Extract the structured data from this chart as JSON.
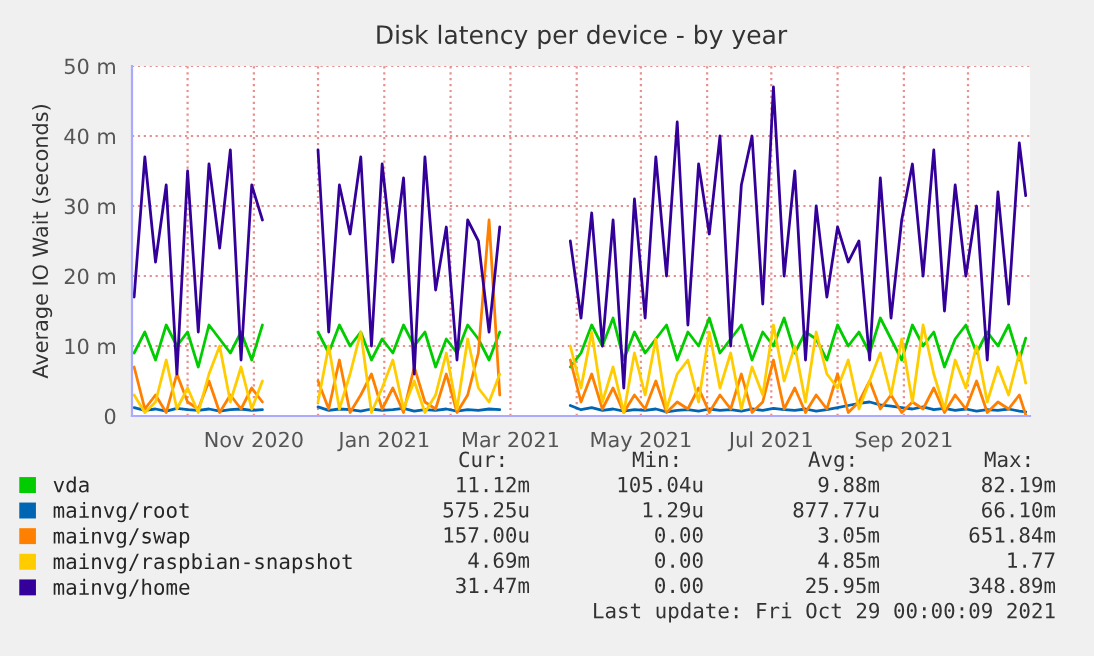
{
  "chart_data": {
    "type": "line",
    "title": "Disk latency per device - by year",
    "ylabel": "Average IO Wait (seconds)",
    "x": [
      "2020-09-06",
      "2020-09-11",
      "2020-09-16",
      "2020-09-21",
      "2020-09-26",
      "2020-10-01",
      "2020-10-06",
      "2020-10-11",
      "2020-10-16",
      "2020-10-21",
      "2020-10-26",
      "2020-10-31",
      "2020-11-05",
      "2020-11-18",
      "2020-12-01",
      "2020-12-06",
      "2020-12-11",
      "2020-12-16",
      "2020-12-21",
      "2020-12-26",
      "2020-12-31",
      "2021-01-05",
      "2021-01-10",
      "2021-01-15",
      "2021-01-20",
      "2021-01-25",
      "2021-01-30",
      "2021-02-04",
      "2021-02-09",
      "2021-02-14",
      "2021-02-19",
      "2021-02-24",
      "2021-03-14",
      "2021-03-29",
      "2021-04-03",
      "2021-04-08",
      "2021-04-13",
      "2021-04-18",
      "2021-04-23",
      "2021-04-28",
      "2021-05-03",
      "2021-05-08",
      "2021-05-13",
      "2021-05-18",
      "2021-05-23",
      "2021-05-28",
      "2021-06-02",
      "2021-06-07",
      "2021-06-12",
      "2021-06-17",
      "2021-06-22",
      "2021-06-27",
      "2021-07-02",
      "2021-07-07",
      "2021-07-12",
      "2021-07-17",
      "2021-07-22",
      "2021-07-27",
      "2021-08-01",
      "2021-08-06",
      "2021-08-11",
      "2021-08-16",
      "2021-08-21",
      "2021-08-26",
      "2021-08-31",
      "2021-09-05",
      "2021-09-10",
      "2021-09-15",
      "2021-09-20",
      "2021-09-25",
      "2021-09-30",
      "2021-10-05",
      "2021-10-10",
      "2021-10-15",
      "2021-10-20",
      "2021-10-25",
      "2021-10-28"
    ],
    "series": [
      {
        "name": "vda",
        "color": "#00cc00",
        "values": [
          9,
          12,
          8,
          13,
          10,
          12,
          7,
          13,
          11,
          9,
          12,
          8,
          13,
          null,
          12,
          9,
          13,
          10,
          12,
          8,
          11,
          9,
          13,
          10,
          12,
          7,
          11,
          9,
          13,
          11,
          8,
          12,
          null,
          7,
          9,
          13,
          10,
          14,
          8,
          12,
          9,
          11,
          13,
          8,
          12,
          10,
          14,
          9,
          11,
          13,
          8,
          12,
          10,
          14,
          9,
          12,
          11,
          8,
          13,
          10,
          12,
          9,
          14,
          11,
          8,
          13,
          10,
          12,
          7,
          11,
          13,
          9,
          12,
          10,
          13,
          8,
          11.12
        ]
      },
      {
        "name": "mainvg/root",
        "color": "#0066b3",
        "values": [
          1.2,
          0.8,
          1,
          0.7,
          1.1,
          0.9,
          0.8,
          1,
          0.7,
          0.9,
          1,
          0.8,
          0.9,
          null,
          1.3,
          0.8,
          1,
          0.9,
          0.7,
          1,
          0.8,
          0.9,
          1.1,
          0.7,
          0.9,
          0.8,
          1,
          0.7,
          0.9,
          0.8,
          1,
          0.9,
          null,
          1.5,
          0.9,
          1.2,
          0.8,
          1,
          0.7,
          0.9,
          0.8,
          1,
          0.6,
          0.8,
          0.9,
          0.7,
          1,
          0.8,
          0.9,
          0.7,
          1,
          0.8,
          1.1,
          0.9,
          0.8,
          1,
          0.7,
          0.9,
          1.2,
          1.5,
          1.8,
          2,
          1.6,
          1.4,
          1.2,
          1,
          1.3,
          0.9,
          1.1,
          0.8,
          1,
          0.7,
          0.9,
          0.8,
          1,
          0.7,
          0.575
        ]
      },
      {
        "name": "mainvg/swap",
        "color": "#ff8000",
        "values": [
          7,
          1,
          3,
          0.5,
          6,
          2,
          1,
          5,
          0.5,
          3,
          1,
          4,
          2,
          null,
          5,
          1,
          8,
          0.5,
          3,
          6,
          1,
          4,
          0.5,
          7,
          2,
          1,
          6,
          0.5,
          3,
          9,
          28,
          3,
          null,
          8,
          2,
          6,
          1,
          4,
          0.5,
          3,
          1,
          5,
          0.5,
          2,
          1,
          4,
          0.5,
          3,
          1,
          6,
          0.5,
          2,
          8,
          1,
          4,
          0.5,
          3,
          1,
          6,
          0.5,
          2,
          5,
          1,
          3,
          0.5,
          2,
          1,
          4,
          0.5,
          3,
          1,
          5,
          0.5,
          2,
          1,
          3,
          0.157
        ]
      },
      {
        "name": "mainvg/raspbian-snapshot",
        "color": "#ffcc00",
        "values": [
          3,
          0.5,
          2,
          8,
          1,
          4,
          0.5,
          6,
          10,
          2,
          7,
          1,
          5,
          null,
          2,
          10,
          1,
          6,
          12,
          0.5,
          4,
          8,
          1,
          5,
          0.5,
          3,
          9,
          1,
          11,
          4,
          2,
          6,
          null,
          10,
          4,
          12,
          2,
          7,
          0.5,
          9,
          3,
          11,
          1,
          6,
          8,
          2,
          12,
          4,
          9,
          1,
          7,
          3,
          13,
          5,
          10,
          2,
          12,
          6,
          4,
          8,
          1,
          5,
          9,
          3,
          11,
          2,
          13,
          6,
          1,
          8,
          4,
          10,
          2,
          7,
          3,
          9,
          4.69
        ]
      },
      {
        "name": "mainvg/home",
        "color": "#330099",
        "values": [
          17,
          37,
          22,
          33,
          6,
          35,
          12,
          36,
          24,
          38,
          8,
          33,
          28,
          null,
          38,
          12,
          33,
          26,
          37,
          10,
          36,
          22,
          34,
          6,
          37,
          18,
          27,
          8,
          28,
          25,
          12,
          27,
          null,
          25,
          14,
          29,
          10,
          28,
          4,
          31,
          14,
          37,
          20,
          42,
          13,
          36,
          26,
          40,
          10,
          33,
          40,
          16,
          47,
          20,
          35,
          8,
          30,
          17,
          27,
          22,
          25,
          8,
          34,
          14,
          28,
          36,
          20,
          38,
          15,
          33,
          20,
          30,
          8,
          32,
          16,
          39,
          31.47
        ]
      }
    ],
    "xlim": [
      "2020-09-05",
      "2021-10-30"
    ],
    "xticks": [
      {
        "value": "2020-10-01",
        "label": null
      },
      {
        "value": "2020-11-01",
        "label": "Nov 2020"
      },
      {
        "value": "2020-12-01",
        "label": null
      },
      {
        "value": "2021-01-01",
        "label": "Jan 2021"
      },
      {
        "value": "2021-02-01",
        "label": null
      },
      {
        "value": "2021-03-01",
        "label": "Mar 2021"
      },
      {
        "value": "2021-04-01",
        "label": null
      },
      {
        "value": "2021-05-01",
        "label": "May 2021"
      },
      {
        "value": "2021-06-01",
        "label": null
      },
      {
        "value": "2021-07-01",
        "label": "Jul 2021"
      },
      {
        "value": "2021-08-01",
        "label": null
      },
      {
        "value": "2021-09-01",
        "label": "Sep 2021"
      },
      {
        "value": "2021-10-01",
        "label": null
      }
    ],
    "ylim": [
      0,
      50
    ],
    "yticks": [
      0,
      {
        "value": 10,
        "label": "10 m"
      },
      {
        "value": 20,
        "label": "20 m"
      },
      {
        "value": 30,
        "label": "30 m"
      },
      {
        "value": 40,
        "label": "40 m"
      },
      {
        "value": 50,
        "label": "50 m"
      }
    ],
    "grid": true,
    "legend": "bottom",
    "line_style": "solid",
    "annotations": [
      "Cur:",
      "Min:",
      "Avg:",
      "Max:",
      "11.12m",
      "105.04u",
      "9.88m",
      "82.19m",
      "575.25u",
      "1.29u",
      "877.77u",
      "66.10m",
      "157.00u",
      "0.00",
      "3.05m",
      "651.84m",
      "4.69m",
      "0.00",
      "4.85m",
      "1.77",
      "31.47m",
      "0.00",
      "25.95m",
      "348.89m",
      "Last update: Fri Oct 29 00:00:09 2021"
    ]
  }
}
